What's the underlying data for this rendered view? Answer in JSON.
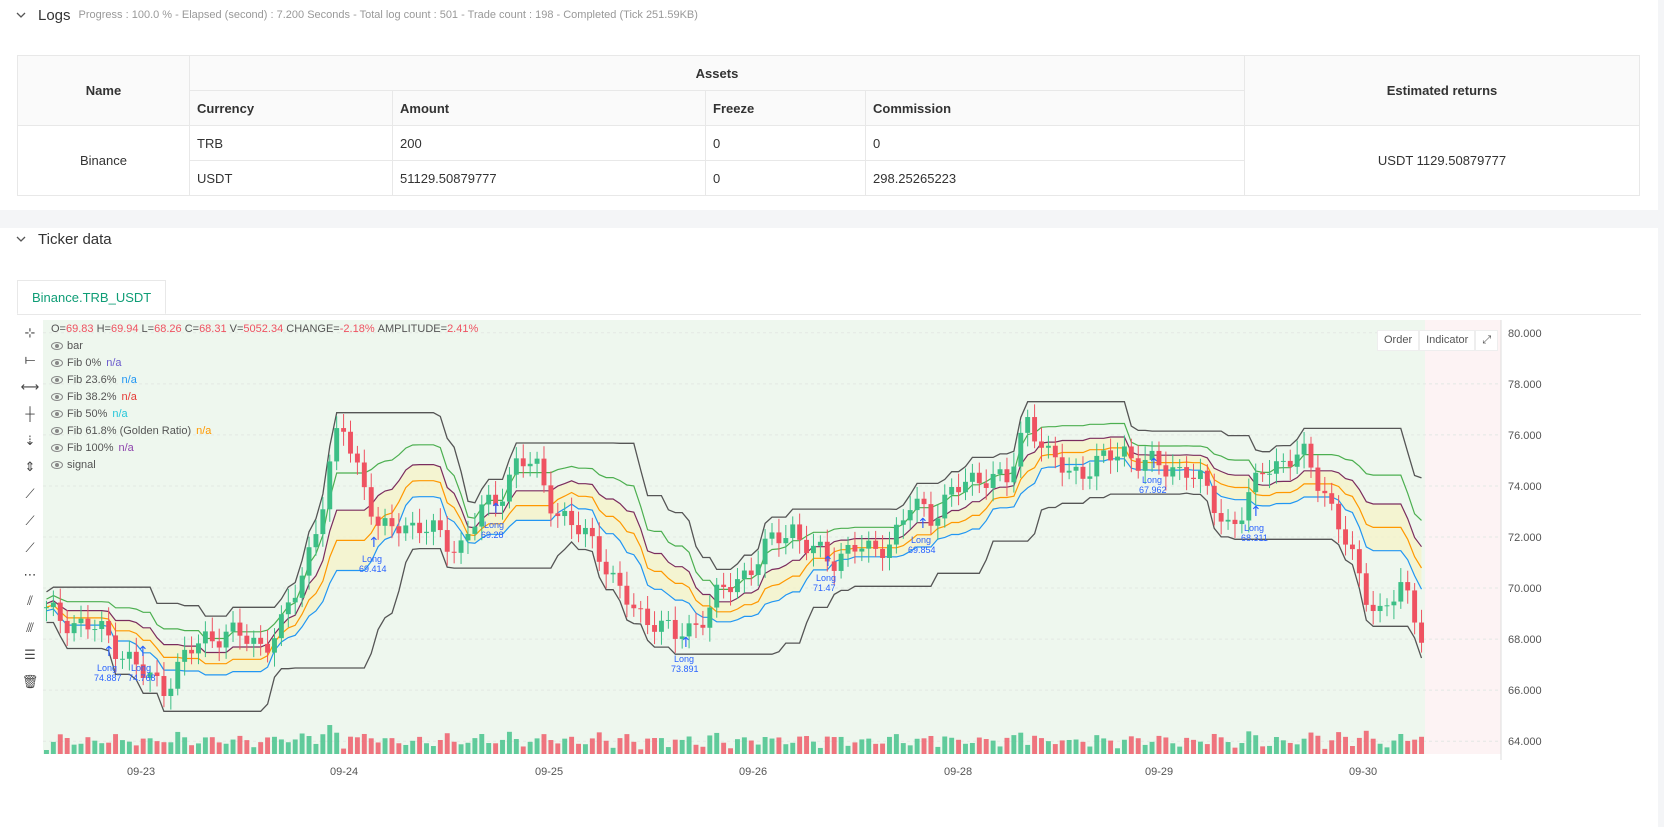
{
  "logs": {
    "title": "Logs",
    "status": "Progress : 100.0 % - Elapsed (second) : 7.200  Seconds - Total log count : 501 - Trade count : 198 - Completed (Tick 251.59KB)",
    "headers": {
      "name": "Name",
      "assets": "Assets",
      "estimated": "Estimated returns",
      "currency": "Currency",
      "amount": "Amount",
      "freeze": "Freeze",
      "commission": "Commission"
    },
    "exchange": "Binance",
    "rows": [
      {
        "currency": "TRB",
        "amount": "200",
        "freeze": "0",
        "commission": "0"
      },
      {
        "currency": "USDT",
        "amount": "51129.50879777",
        "freeze": "0",
        "commission": "298.25265223"
      }
    ],
    "estimated_value": "USDT 1129.50879777"
  },
  "ticker": {
    "title": "Ticker data",
    "tab": "Binance.TRB_USDT",
    "buttons": {
      "order": "Order",
      "indicator": "Indicator"
    },
    "ohlc": {
      "O": "69.83",
      "H": "69.94",
      "L": "68.26",
      "C": "68.31",
      "V": "5052.34",
      "change": "-2.18%",
      "amplitude": "2.41%"
    },
    "ohlc_labels": {
      "O": "O=",
      "H": "H=",
      "L": "L=",
      "C": "C=",
      "V": "V=",
      "change": "CHANGE=",
      "amplitude": "AMPLITUDE="
    },
    "legend": [
      {
        "label": "bar",
        "value": ""
      },
      {
        "label": "Fib 0%",
        "value": "n/a",
        "color": "#6a5acd"
      },
      {
        "label": "Fib 23.6%",
        "value": "n/a",
        "color": "#2196f3"
      },
      {
        "label": "Fib 38.2%",
        "value": "n/a",
        "color": "#e53935"
      },
      {
        "label": "Fib 50%",
        "value": "n/a",
        "color": "#26c6da"
      },
      {
        "label": "Fib 61.8% (Golden Ratio)",
        "value": "n/a",
        "color": "#ff9800"
      },
      {
        "label": "Fib 100%",
        "value": "n/a",
        "color": "#8e44ad"
      },
      {
        "label": "signal",
        "value": ""
      }
    ],
    "tools": [
      "crosshair-icon",
      "horizontal-line-icon",
      "ray-icon",
      "vertical-line-icon",
      "arrow-down-icon",
      "range-icon",
      "trend-line-icon",
      "trend-angle-icon",
      "ray-line-icon",
      "ruler-icon",
      "parallel-channel-icon",
      "pitchfork-icon",
      "fib-retracement-icon",
      "trash-icon"
    ]
  },
  "chart_data": {
    "type": "candlestick",
    "colors": {
      "up": "#3cbf86",
      "down": "#ef5261",
      "fib0": "#555555",
      "fib236": "#2196f3",
      "fib382": "#ff9800",
      "fib50": "#7b2d5e",
      "fib618": "#4caf50",
      "fib100": "#555555",
      "signal": "#2962ff",
      "background": "#eef7ee"
    },
    "y_ticks": [
      "80.000",
      "78.000",
      "76.000",
      "74.000",
      "72.000",
      "70.000",
      "68.000",
      "66.000",
      "64.000"
    ],
    "ylim": [
      63.5,
      80.5
    ],
    "x_ticks": [
      "09-23",
      "09-24",
      "09-25",
      "09-26",
      "09-28",
      "09-29",
      "09-30"
    ],
    "close_path": [
      69.0,
      68.8,
      68.5,
      68.2,
      67.4,
      66.5,
      66.2,
      67.2,
      68.0,
      68.3,
      68.0,
      67.8,
      68.5,
      70.5,
      73.2,
      76.5,
      74.5,
      72.0,
      72.6,
      72.4,
      72.0,
      71.6,
      72.8,
      73.6,
      75.0,
      74.6,
      73.0,
      72.2,
      71.8,
      70.0,
      69.0,
      68.8,
      68.0,
      68.6,
      69.5,
      70.2,
      71.0,
      71.8,
      72.4,
      71.4,
      71.0,
      71.8,
      71.2,
      72.0,
      73.2,
      72.8,
      73.8,
      74.0,
      74.6,
      74.1,
      76.8,
      75.2,
      74.4,
      74.8,
      75.0,
      75.4,
      74.9,
      74.6,
      74.8,
      73.8,
      72.5,
      73.0,
      74.8,
      75.0,
      75.1,
      74.0,
      72.0,
      70.0,
      69.0,
      70.0,
      68.4
    ],
    "signals": [
      {
        "label": "Long",
        "value": "74.887"
      },
      {
        "label": "Long",
        "value": "74.768"
      },
      {
        "label": "Long",
        "value": "69.414"
      },
      {
        "label": "Long",
        "value": "69.28"
      },
      {
        "label": "Long",
        "value": "73.891"
      },
      {
        "label": "Long",
        "value": "71.47"
      },
      {
        "label": "Long",
        "value": "69.854"
      },
      {
        "label": "Long",
        "value": "67.962"
      },
      {
        "label": "Long",
        "value": "68.311"
      }
    ]
  }
}
